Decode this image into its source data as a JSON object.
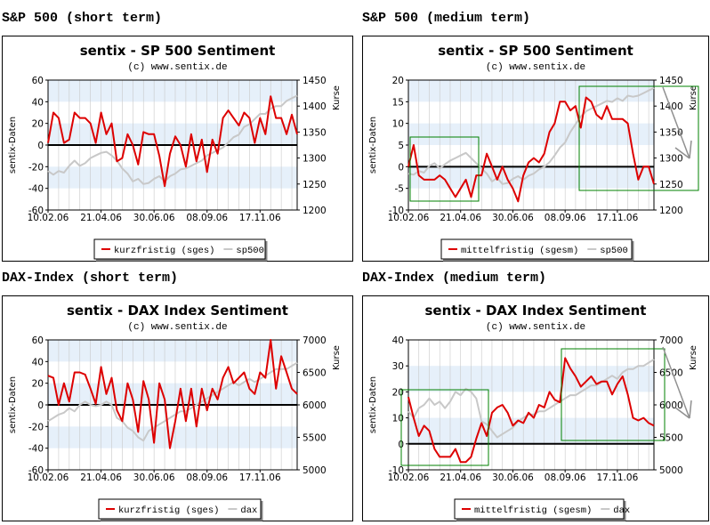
{
  "page_titles": {
    "sp_short": "S&P 500 (short term)",
    "sp_medium": "S&P 500 (medium term)",
    "dax_short": "DAX-Index (short term)",
    "dax_medium": "DAX-Index (medium term)"
  },
  "colors": {
    "sentiment_line": "#dd0000",
    "index_line": "#c8c8c8",
    "band": "#e6f0fa",
    "grid": "#c8c8c8",
    "highlight_box": "#008000",
    "arrow": "#909090"
  },
  "chart_data": [
    {
      "type": "line",
      "title": "sentix - SP 500 Sentiment",
      "subtitle": "(c) www.sentix.de",
      "ylabel": "sentix-Daten",
      "y2label": "Kurse",
      "ylim": [
        -60,
        60
      ],
      "yticks": [
        -60,
        -40,
        -20,
        0,
        20,
        40,
        60
      ],
      "y2lim": [
        1200,
        1450
      ],
      "y2ticks": [
        1200,
        1250,
        1300,
        1350,
        1400,
        1450
      ],
      "xticks": [
        "10.02.06",
        "21.04.06",
        "30.06.06",
        "08.09.06",
        "17.11.06"
      ],
      "x_tick_positions": [
        0,
        10,
        20,
        30,
        40
      ],
      "legend": [
        "kurzfristig (sges)",
        "sp500"
      ],
      "series": [
        {
          "name": "kurzfristig (sges)",
          "axis": "left",
          "values": [
            2,
            30,
            25,
            2,
            5,
            30,
            25,
            25,
            20,
            2,
            30,
            10,
            20,
            -15,
            -12,
            10,
            0,
            -18,
            12,
            10,
            10,
            -10,
            -38,
            -8,
            8,
            0,
            -20,
            10,
            -15,
            5,
            -25,
            5,
            -8,
            25,
            32,
            25,
            18,
            30,
            25,
            2,
            25,
            10,
            45,
            25,
            25,
            10,
            28,
            10
          ]
        },
        {
          "name": "sp500",
          "axis": "right",
          "values": [
            1275,
            1268,
            1275,
            1272,
            1285,
            1295,
            1285,
            1290,
            1300,
            1305,
            1310,
            1312,
            1305,
            1295,
            1280,
            1270,
            1255,
            1260,
            1250,
            1252,
            1260,
            1265,
            1255,
            1265,
            1270,
            1278,
            1280,
            1285,
            1290,
            1295,
            1305,
            1310,
            1315,
            1320,
            1330,
            1340,
            1345,
            1360,
            1365,
            1375,
            1385,
            1385,
            1395,
            1400,
            1400,
            1410,
            1415,
            1420
          ]
        }
      ]
    },
    {
      "type": "line",
      "title": "sentix - SP 500 Sentiment",
      "subtitle": "(c) www.sentix.de",
      "ylabel": "sentix-Daten",
      "y2label": "Kurse",
      "ylim": [
        -10,
        20
      ],
      "yticks": [
        -10,
        -5,
        0,
        5,
        10,
        15,
        20
      ],
      "y2lim": [
        1200,
        1450
      ],
      "y2ticks": [
        1200,
        1250,
        1300,
        1350,
        1400,
        1450
      ],
      "xticks": [
        "10.02.06",
        "21.04.06",
        "30.06.06",
        "08.09.06",
        "17.11.06"
      ],
      "x_tick_positions": [
        0,
        10,
        20,
        30,
        40
      ],
      "legend": [
        "mittelfristig (sgesm)",
        "sp500"
      ],
      "series": [
        {
          "name": "mittelfristig (sgesm)",
          "axis": "left",
          "values": [
            0,
            5,
            -2,
            -3,
            -3,
            -3,
            -2,
            -3,
            -5,
            -7,
            -5,
            -3,
            -7,
            -2,
            -2,
            3,
            0,
            -3,
            0,
            -3,
            -5,
            -8,
            -2,
            1,
            2,
            1,
            3,
            8,
            10,
            15,
            15,
            13,
            14,
            9,
            16,
            15,
            12,
            11,
            14,
            11,
            11,
            11,
            10,
            3,
            -3,
            0,
            0,
            -4
          ]
        },
        {
          "name": "sp500",
          "axis": "right",
          "values": [
            1270,
            1268,
            1275,
            1272,
            1285,
            1290,
            1280,
            1288,
            1295,
            1300,
            1305,
            1310,
            1300,
            1290,
            1280,
            1270,
            1255,
            1262,
            1250,
            1252,
            1260,
            1265,
            1258,
            1266,
            1270,
            1278,
            1283,
            1292,
            1305,
            1320,
            1330,
            1350,
            1365,
            1380,
            1390,
            1395,
            1400,
            1405,
            1410,
            1408,
            1415,
            1410,
            1420,
            1418,
            1420,
            1425,
            1430,
            1435
          ]
        }
      ]
    },
    {
      "type": "line",
      "title": "sentix - DAX Index Sentiment",
      "subtitle": "(c) www.sentix.de",
      "ylabel": "sentix-Daten",
      "y2label": "Kurse",
      "ylim": [
        -60,
        60
      ],
      "yticks": [
        -60,
        -40,
        -20,
        0,
        20,
        40,
        60
      ],
      "y2lim": [
        5000,
        7000
      ],
      "y2ticks": [
        5000,
        5500,
        6000,
        6500,
        7000
      ],
      "xticks": [
        "10.02.06",
        "21.04.06",
        "30.06.06",
        "08.09.06",
        "17.11.06"
      ],
      "x_tick_positions": [
        0,
        10,
        20,
        30,
        40
      ],
      "legend": [
        "kurzfristig (sges)",
        "dax"
      ],
      "series": [
        {
          "name": "kurzfristig (sges)",
          "axis": "left",
          "values": [
            27,
            25,
            0,
            20,
            3,
            30,
            30,
            28,
            15,
            1,
            35,
            10,
            25,
            -5,
            -15,
            20,
            5,
            -25,
            22,
            5,
            -35,
            20,
            5,
            -40,
            -15,
            15,
            -15,
            15,
            -20,
            15,
            -5,
            15,
            5,
            25,
            35,
            20,
            25,
            30,
            15,
            10,
            30,
            25,
            60,
            15,
            45,
            30,
            15,
            10
          ]
        },
        {
          "name": "dax",
          "axis": "right",
          "values": [
            5750,
            5800,
            5850,
            5880,
            5950,
            5900,
            6000,
            6050,
            6000,
            5980,
            6000,
            6050,
            6000,
            5800,
            5750,
            5650,
            5600,
            5500,
            5450,
            5600,
            5650,
            5700,
            5750,
            5800,
            5850,
            5900,
            5900,
            5950,
            6000,
            6050,
            6100,
            6150,
            6200,
            6250,
            6300,
            6350,
            6300,
            6350,
            6400,
            6350,
            6400,
            6450,
            6500,
            6550,
            6550,
            6550,
            6600,
            6650
          ]
        }
      ]
    },
    {
      "type": "line",
      "title": "sentix - DAX Index Sentiment",
      "subtitle": "(c) www.sentix.de",
      "ylabel": "sentix-Daten",
      "y2label": "Kurse",
      "ylim": [
        -10,
        40
      ],
      "yticks": [
        -10,
        0,
        10,
        20,
        30,
        40
      ],
      "y2lim": [
        5000,
        7000
      ],
      "y2ticks": [
        5000,
        5500,
        6000,
        6500,
        7000
      ],
      "xticks": [
        "10.02.06",
        "21.04.06",
        "30.06.06",
        "08.09.06",
        "17.11.06"
      ],
      "x_tick_positions": [
        0,
        10,
        20,
        30,
        40
      ],
      "legend": [
        "mittelfristig (sgesm)",
        "dax"
      ],
      "series": [
        {
          "name": "mittelfristig (sgesm)",
          "axis": "left",
          "values": [
            18,
            10,
            3,
            7,
            5,
            -2,
            -5,
            -5,
            -5,
            -2,
            -7,
            -7,
            -5,
            2,
            8,
            3,
            12,
            14,
            15,
            12,
            7,
            9,
            8,
            12,
            10,
            15,
            14,
            20,
            17,
            16,
            33,
            29,
            26,
            22,
            24,
            26,
            23,
            24,
            24,
            19,
            23,
            26,
            19,
            10,
            9,
            10,
            8,
            7
          ]
        },
        {
          "name": "dax",
          "axis": "right",
          "values": [
            5900,
            5800,
            5950,
            6000,
            6100,
            6000,
            6050,
            5950,
            6050,
            6200,
            6150,
            6250,
            6200,
            6100,
            5750,
            5700,
            5600,
            5500,
            5550,
            5600,
            5650,
            5750,
            5800,
            5850,
            5850,
            5900,
            5900,
            5950,
            6000,
            6050,
            6100,
            6150,
            6150,
            6200,
            6250,
            6300,
            6300,
            6350,
            6400,
            6450,
            6400,
            6500,
            6550,
            6550,
            6600,
            6600,
            6650,
            6700
          ]
        }
      ]
    }
  ]
}
